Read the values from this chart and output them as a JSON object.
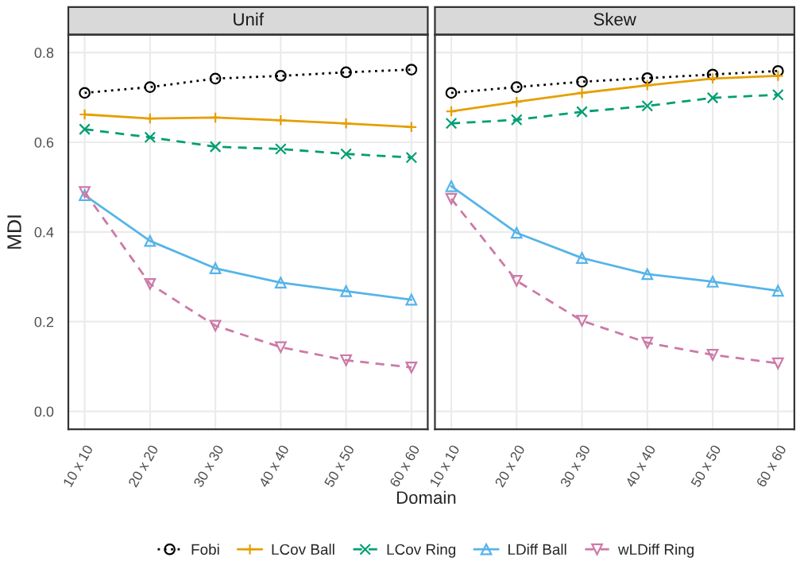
{
  "chart_data": [
    {
      "type": "line",
      "title": "Unif",
      "ylabel": "MDI",
      "xlabel": "Domain",
      "categories": [
        "10 x 10",
        "20 x 20",
        "30 x 30",
        "40 x 40",
        "50 x 50",
        "60 x 60"
      ],
      "ylim": [
        -0.04,
        0.84
      ],
      "yticks": [
        {
          "value": 0,
          "label": "0.0"
        },
        0.2,
        0.4,
        0.6,
        0.8
      ],
      "grid": true,
      "legend": "bottom",
      "series": [
        {
          "name": "Fobi",
          "color": "#000000",
          "marker": "circle",
          "line_style": "dotted",
          "values": [
            0.71,
            0.723,
            0.742,
            0.748,
            0.756,
            0.762
          ]
        },
        {
          "name": "LCov Ball",
          "color": "#e69f00",
          "marker": "cross",
          "line_style": "solid",
          "values": [
            0.662,
            0.653,
            0.655,
            0.649,
            0.642,
            0.634
          ]
        },
        {
          "name": "LCov Ring",
          "color": "#009e73",
          "marker": "x",
          "line_style": "dashed",
          "values": [
            0.629,
            0.611,
            0.59,
            0.585,
            0.574,
            0.566
          ]
        },
        {
          "name": "LDiff Ball",
          "color": "#56b4e9",
          "marker": "triangle",
          "line_style": "solid",
          "values": [
            0.482,
            0.38,
            0.319,
            0.287,
            0.268,
            0.249
          ]
        },
        {
          "name": "wLDiff Ring",
          "color": "#cc79a7",
          "marker": "triangle_down",
          "line_style": "dashed",
          "values": [
            0.489,
            0.284,
            0.191,
            0.143,
            0.114,
            0.098
          ]
        }
      ]
    },
    {
      "type": "line",
      "title": "Skew",
      "categories": [
        "10 x 10",
        "20 x 20",
        "30 x 30",
        "40 x 40",
        "50 x 50",
        "60 x 60"
      ],
      "ylim": [
        -0.04,
        0.84
      ],
      "yticks": [
        0,
        0.2,
        0.4,
        0.6,
        0.8
      ],
      "grid": true,
      "tick_labels": "x",
      "series": [
        {
          "color": "#000000",
          "marker": "circle",
          "line_style": "dotted",
          "values": [
            0.71,
            0.723,
            0.735,
            0.743,
            0.751,
            0.759
          ]
        },
        {
          "color": "#e69f00",
          "marker": "cross",
          "line_style": "solid",
          "values": [
            0.669,
            0.69,
            0.71,
            0.727,
            0.742,
            0.748
          ]
        },
        {
          "color": "#009e73",
          "marker": "x",
          "line_style": "dashed",
          "values": [
            0.642,
            0.65,
            0.668,
            0.681,
            0.699,
            0.706
          ]
        },
        {
          "color": "#56b4e9",
          "marker": "triangle",
          "line_style": "solid",
          "values": [
            0.502,
            0.398,
            0.342,
            0.306,
            0.289,
            0.269
          ]
        },
        {
          "color": "#cc79a7",
          "marker": "triangle_down",
          "line_style": "dashed",
          "values": [
            0.474,
            0.291,
            0.202,
            0.153,
            0.126,
            0.107
          ]
        }
      ]
    }
  ]
}
